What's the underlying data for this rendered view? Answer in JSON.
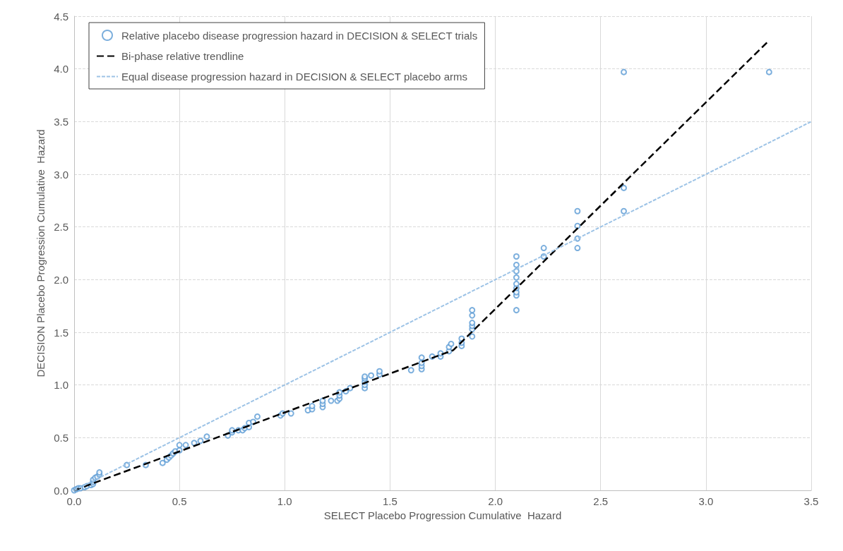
{
  "chart_data": {
    "type": "scatter",
    "xlabel": "SELECT Placebo Progression Cumulative  Hazard",
    "ylabel": "DECISION Placebo Progression Cumulative  Hazard",
    "xlim": [
      0,
      3.5
    ],
    "xticks": [
      {
        "value": 0,
        "label": "0.0"
      },
      {
        "value": 0.5,
        "label": "0.5"
      },
      {
        "value": 1,
        "label": "1.0"
      },
      {
        "value": 1.5,
        "label": "1.5"
      },
      {
        "value": 2,
        "label": "2.0"
      },
      {
        "value": 2.5,
        "label": "2.5"
      },
      {
        "value": 3,
        "label": "3.0"
      },
      {
        "value": 3.5,
        "label": "3.5"
      }
    ],
    "ylim": [
      0,
      4.5
    ],
    "yticks": [
      {
        "value": 0,
        "label": "0.0"
      },
      {
        "value": 0.5,
        "label": "0.5"
      },
      {
        "value": 1,
        "label": "1.0"
      },
      {
        "value": 1.5,
        "label": "1.5"
      },
      {
        "value": 2,
        "label": "2.0"
      },
      {
        "value": 2.5,
        "label": "2.5"
      },
      {
        "value": 3,
        "label": "3.0"
      },
      {
        "value": 3.5,
        "label": "3.5"
      },
      {
        "value": 4,
        "label": "4.0"
      },
      {
        "value": 4.5,
        "label": "4.5"
      }
    ],
    "grid": true,
    "legend": "top left",
    "series": [
      {
        "name": "Relative placebo disease progression hazard in DECISION & SELECT trials",
        "marker": "circle",
        "color": "#5b9bd5",
        "x": [
          0,
          0.01,
          0.02,
          0.03,
          0.05,
          0.06,
          0.08,
          0.09,
          0.09,
          0.09,
          0.1,
          0.11,
          0.12,
          0.12,
          0.25,
          0.34,
          0.42,
          0.44,
          0.45,
          0.46,
          0.47,
          0.48,
          0.5,
          0.5,
          0.53,
          0.57,
          0.6,
          0.63,
          0.73,
          0.75,
          0.75,
          0.78,
          0.8,
          0.81,
          0.83,
          0.83,
          0.85,
          0.87,
          0.98,
          0.99,
          1.03,
          1.11,
          1.13,
          1.13,
          1.18,
          1.18,
          1.18,
          1.22,
          1.25,
          1.26,
          1.26,
          1.26,
          1.29,
          1.31,
          1.38,
          1.38,
          1.38,
          1.38,
          1.38,
          1.41,
          1.45,
          1.45,
          1.6,
          1.65,
          1.65,
          1.65,
          1.65,
          1.7,
          1.74,
          1.74,
          1.78,
          1.78,
          1.79,
          1.84,
          1.84,
          1.84,
          1.89,
          1.89,
          1.89,
          1.89,
          1.89,
          1.89,
          2.1,
          2.1,
          2.1,
          2.1,
          2.1,
          2.1,
          2.1,
          2.1,
          2.1,
          2.23,
          2.23,
          2.39,
          2.39,
          2.39,
          2.39,
          2.61,
          2.61,
          2.61,
          3.3
        ],
        "values": [
          0,
          0.01,
          0.02,
          0.02,
          0.03,
          0.04,
          0.05,
          0.06,
          0.08,
          0.1,
          0.12,
          0.13,
          0.15,
          0.17,
          0.24,
          0.24,
          0.26,
          0.29,
          0.31,
          0.33,
          0.35,
          0.37,
          0.38,
          0.43,
          0.43,
          0.45,
          0.47,
          0.51,
          0.52,
          0.55,
          0.57,
          0.57,
          0.57,
          0.59,
          0.6,
          0.64,
          0.65,
          0.7,
          0.71,
          0.73,
          0.73,
          0.76,
          0.77,
          0.8,
          0.79,
          0.82,
          0.85,
          0.85,
          0.85,
          0.87,
          0.9,
          0.93,
          0.94,
          0.97,
          0.97,
          1.0,
          1.03,
          1.06,
          1.08,
          1.09,
          1.1,
          1.13,
          1.14,
          1.15,
          1.18,
          1.21,
          1.26,
          1.27,
          1.27,
          1.3,
          1.32,
          1.36,
          1.39,
          1.37,
          1.4,
          1.44,
          1.46,
          1.53,
          1.56,
          1.59,
          1.66,
          1.71,
          1.71,
          1.85,
          1.88,
          1.92,
          1.96,
          2.02,
          2.08,
          2.14,
          2.22,
          2.22,
          2.3,
          2.3,
          2.39,
          2.51,
          2.65,
          2.65,
          2.87,
          3.97,
          3.97
        ]
      },
      {
        "name": "Bi-phase relative trendline",
        "type": "line",
        "marker": "none",
        "line_style": "dashed",
        "color": "#000000",
        "x": [
          0,
          1.8,
          3.3
        ],
        "values": [
          0,
          1.33,
          4.27
        ]
      },
      {
        "name": "Equal disease progression hazard in DECISION & SELECT placebo arms",
        "type": "line",
        "marker": "none",
        "line_style": "dotted",
        "color": "#9dc3e6",
        "x": [
          0,
          3.5
        ],
        "values": [
          0,
          3.5
        ]
      }
    ]
  }
}
